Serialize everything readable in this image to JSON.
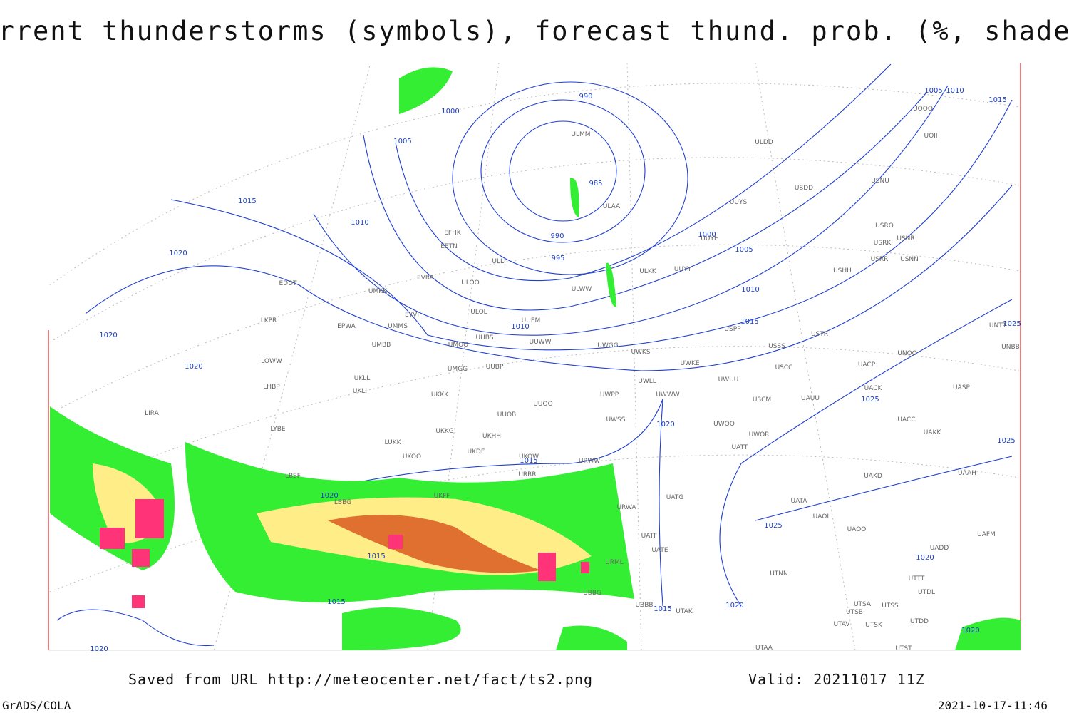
{
  "title": "Current thunderstorms (symbols), forecast thund. prob. (%, shaded)",
  "footer": {
    "source": "Saved from URL http://meteocenter.net/fact/ts2.png",
    "valid": "Valid: 20211017 11Z",
    "software": "GrADS/COLA",
    "timestamp": "2021-10-17-11:46"
  },
  "isobar_labels": [
    "1000",
    "1005",
    "990",
    "985",
    "990",
    "995",
    "1000",
    "1005",
    "1010",
    "1015",
    "1010",
    "1010",
    "1015",
    "1020",
    "1020",
    "1020",
    "1020",
    "1015",
    "1020",
    "1015",
    "1015",
    "1015",
    "1020",
    "1025",
    "1025",
    "1025",
    "1020",
    "1020",
    "1005",
    "1010",
    "1015",
    "1025",
    "1020"
  ],
  "stations": [
    "ULMM",
    "ULDD",
    "USNU",
    "ULAA",
    "ULLI",
    "EFHK",
    "EETN",
    "EVRA",
    "ULOO",
    "UMKK",
    "EYVI",
    "ULOL",
    "UMMS",
    "EPWA",
    "EDDT",
    "LKPR",
    "UMBB",
    "UUEM",
    "UUWW",
    "UUBS",
    "UMOO",
    "UWGG",
    "UWKS",
    "UWKE",
    "ULKK",
    "UUYY",
    "ULWW",
    "USSS",
    "USRR",
    "USNN",
    "USHH",
    "USRK",
    "USRO",
    "USNR",
    "UOOO",
    "UOII",
    "USDD",
    "UUYS",
    "UUYH",
    "USPP",
    "USTR",
    "UNOO",
    "UNBB",
    "UNTT",
    "UACC",
    "UAKK",
    "UASP",
    "UACK",
    "UACP",
    "USCC",
    "USCM",
    "UAUU",
    "UWUU",
    "UWWW",
    "UWLL",
    "UWPP",
    "UWSS",
    "UWOO",
    "UWOR",
    "UATT",
    "URWW",
    "URWA",
    "UATG",
    "UATA",
    "UAOL",
    "UAOO",
    "UAKD",
    "UAAH",
    "UAFM",
    "UADD",
    "UTNN",
    "UTTT",
    "UTDL",
    "UTSA",
    "UTSB",
    "UTSS",
    "UTAV",
    "UTSK",
    "UTDD",
    "UTST",
    "UTAA",
    "UTAK",
    "UATE",
    "UATF",
    "URML",
    "UBBB",
    "UBBG",
    "UKKK",
    "UKOO",
    "UKDE",
    "UKHH",
    "UKKG",
    "UUOB",
    "UUOO",
    "UMGG",
    "UUBP",
    "UKLL",
    "UKLI",
    "LOWW",
    "LHBP",
    "LIRA",
    "LYBE",
    "LBSF",
    "LUKK",
    "UKOW",
    "URRR",
    "UKFF",
    "LBBG"
  ]
}
